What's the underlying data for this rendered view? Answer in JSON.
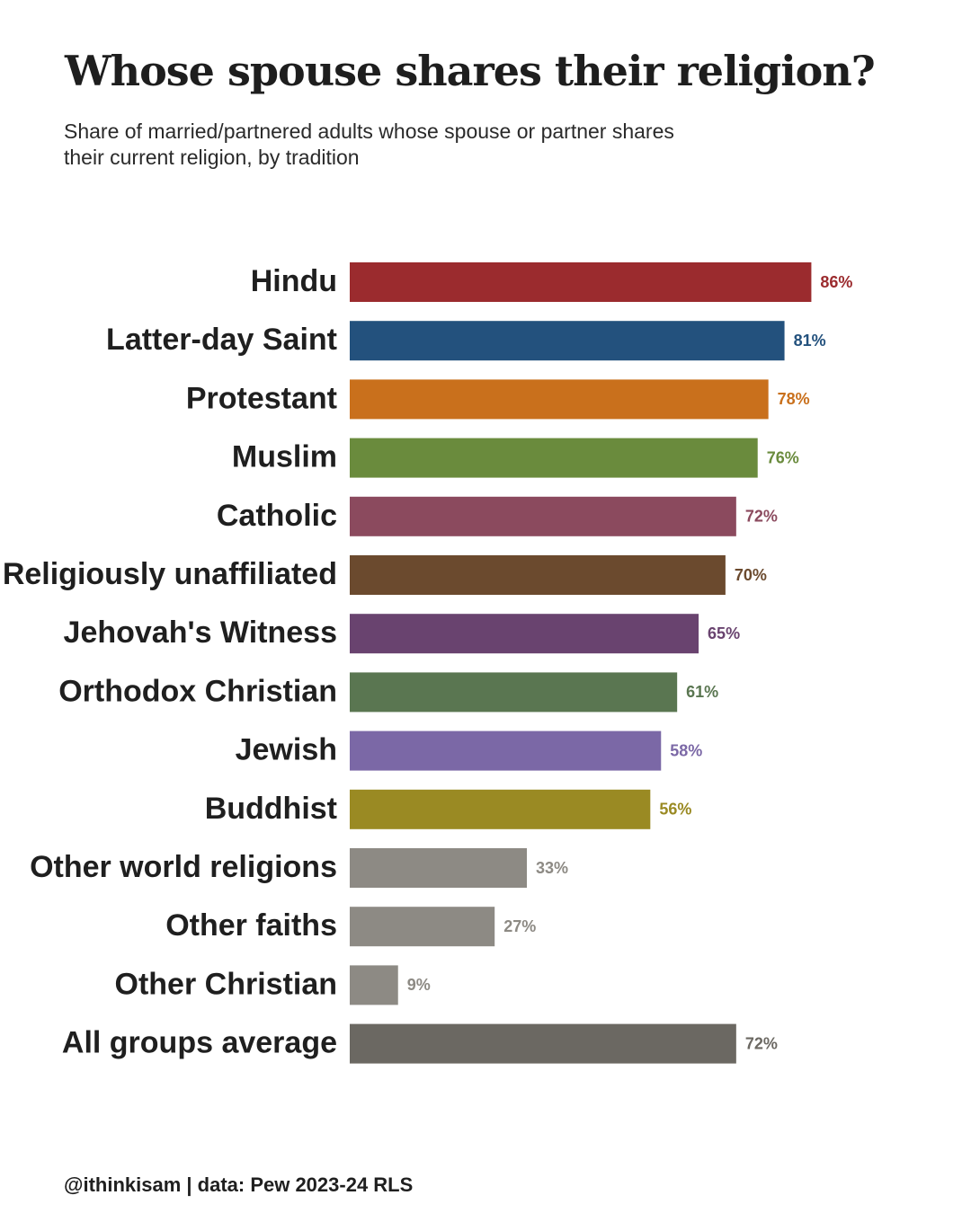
{
  "title": "Whose spouse shares their religion?",
  "subtitle": "Share of married/partnered adults whose spouse or partner shares their current religion, by tradition",
  "footer": "@ithinkisam | data: Pew 2023-24 RLS",
  "chart_data": {
    "type": "bar",
    "orientation": "horizontal",
    "value_suffix": "%",
    "grid": false,
    "legend": "none",
    "xlim": [
      0,
      100
    ],
    "categories": [
      "Hindu",
      "Latter-day Saint",
      "Protestant",
      "Muslim",
      "Catholic",
      "Religiously unaffiliated",
      "Jehovah's Witness",
      "Orthodox Christian",
      "Jewish",
      "Buddhist",
      "Other world religions",
      "Other faiths",
      "Other Christian",
      "All groups average"
    ],
    "values": [
      86,
      81,
      78,
      76,
      72,
      70,
      65,
      61,
      58,
      56,
      33,
      27,
      9,
      72
    ],
    "colors": [
      "#9b2b2e",
      "#23517d",
      "#c9701c",
      "#6a8b3d",
      "#8b4a5e",
      "#6b4a2e",
      "#69436f",
      "#5a7651",
      "#7b68a6",
      "#9a8a23",
      "#8d8a84",
      "#8d8a84",
      "#8d8a84",
      "#6b6862"
    ]
  }
}
